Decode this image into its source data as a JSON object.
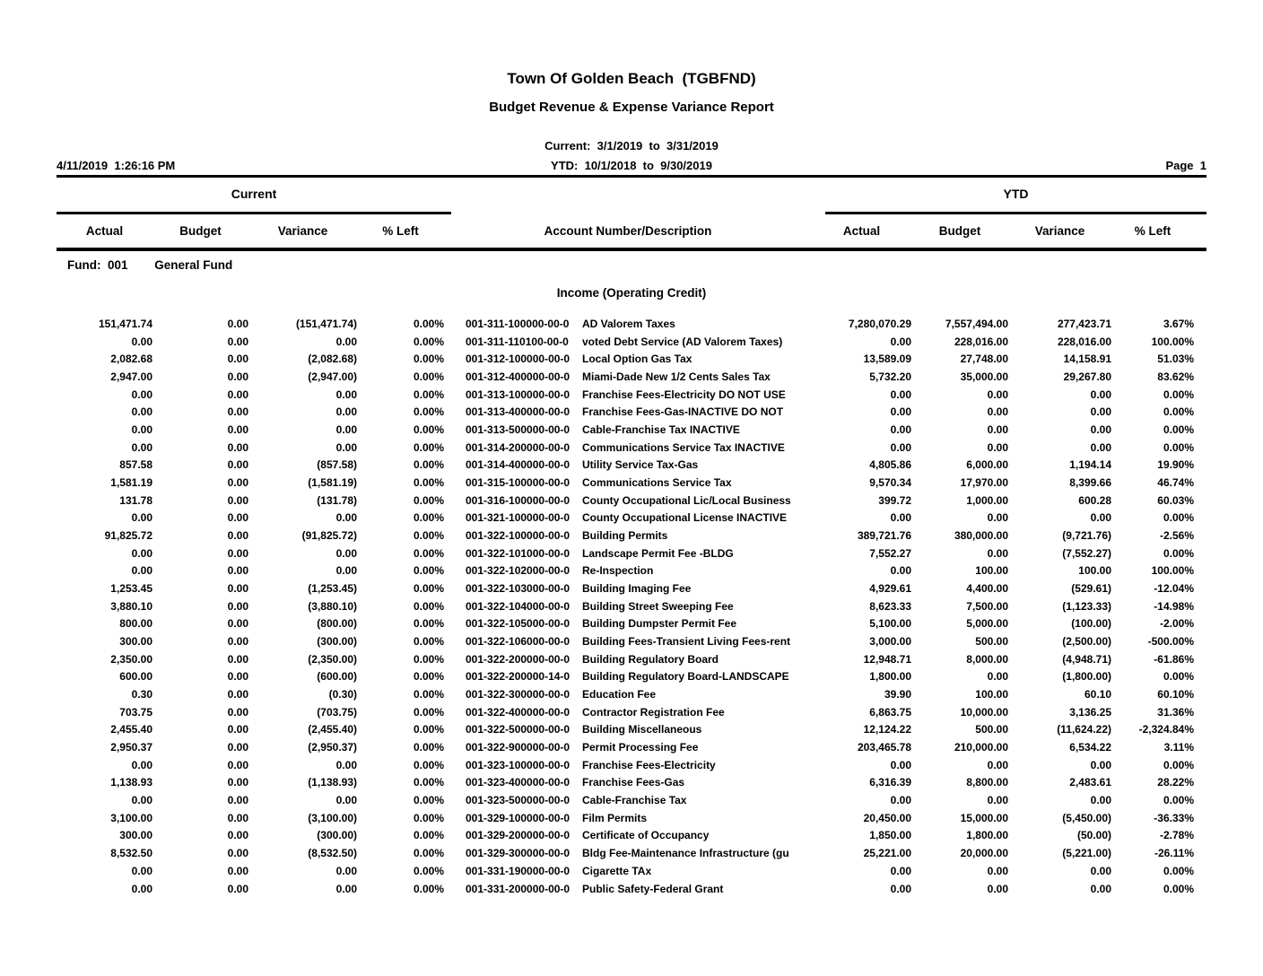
{
  "report": {
    "title": "Town Of Golden Beach  (TGBFND)",
    "subtitle": "Budget Revenue & Expense Variance Report",
    "current_period": "Current:  3/1/2019  to  3/31/2019",
    "ytd_period": "YTD:  10/1/2018  to  9/30/2019",
    "printed_timestamp": "4/11/2019  1:26:16 PM",
    "page_label": "Page  1"
  },
  "table": {
    "group_headers": {
      "current": "Current",
      "ytd": "YTD"
    },
    "columns": [
      "Actual",
      "Budget",
      "Variance",
      "% Left",
      "Account Number/Description",
      "Actual",
      "Budget",
      "Variance",
      "% Left"
    ],
    "fund_label": "Fund:  001",
    "fund_name": "General Fund",
    "section": "Income (Operating Credit)",
    "rows": [
      [
        "151,471.74",
        "0.00",
        "(151,471.74)",
        "0.00%",
        "001-311-100000-00-0",
        "AD Valorem Taxes",
        "7,280,070.29",
        "7,557,494.00",
        "277,423.71",
        "3.67%"
      ],
      [
        "0.00",
        "0.00",
        "0.00",
        "0.00%",
        "001-311-110100-00-0",
        "voted Debt Service (AD Valorem Taxes)",
        "0.00",
        "228,016.00",
        "228,016.00",
        "100.00%"
      ],
      [
        "2,082.68",
        "0.00",
        "(2,082.68)",
        "0.00%",
        "001-312-100000-00-0",
        "Local Option Gas Tax",
        "13,589.09",
        "27,748.00",
        "14,158.91",
        "51.03%"
      ],
      [
        "2,947.00",
        "0.00",
        "(2,947.00)",
        "0.00%",
        "001-312-400000-00-0",
        "Miami-Dade New 1/2 Cents Sales Tax",
        "5,732.20",
        "35,000.00",
        "29,267.80",
        "83.62%"
      ],
      [
        "0.00",
        "0.00",
        "0.00",
        "0.00%",
        "001-313-100000-00-0",
        "Franchise Fees-Electricity DO NOT USE",
        "0.00",
        "0.00",
        "0.00",
        "0.00%"
      ],
      [
        "0.00",
        "0.00",
        "0.00",
        "0.00%",
        "001-313-400000-00-0",
        "Franchise Fees-Gas-INACTIVE DO NOT",
        "0.00",
        "0.00",
        "0.00",
        "0.00%"
      ],
      [
        "0.00",
        "0.00",
        "0.00",
        "0.00%",
        "001-313-500000-00-0",
        "Cable-Franchise Tax INACTIVE",
        "0.00",
        "0.00",
        "0.00",
        "0.00%"
      ],
      [
        "0.00",
        "0.00",
        "0.00",
        "0.00%",
        "001-314-200000-00-0",
        "Communications Service Tax INACTIVE",
        "0.00",
        "0.00",
        "0.00",
        "0.00%"
      ],
      [
        "857.58",
        "0.00",
        "(857.58)",
        "0.00%",
        "001-314-400000-00-0",
        "Utility Service Tax-Gas",
        "4,805.86",
        "6,000.00",
        "1,194.14",
        "19.90%"
      ],
      [
        "1,581.19",
        "0.00",
        "(1,581.19)",
        "0.00%",
        "001-315-100000-00-0",
        "Communications Service Tax",
        "9,570.34",
        "17,970.00",
        "8,399.66",
        "46.74%"
      ],
      [
        "131.78",
        "0.00",
        "(131.78)",
        "0.00%",
        "001-316-100000-00-0",
        "County Occupational Lic/Local Business",
        "399.72",
        "1,000.00",
        "600.28",
        "60.03%"
      ],
      [
        "0.00",
        "0.00",
        "0.00",
        "0.00%",
        "001-321-100000-00-0",
        "County Occupational License INACTIVE",
        "0.00",
        "0.00",
        "0.00",
        "0.00%"
      ],
      [
        "91,825.72",
        "0.00",
        "(91,825.72)",
        "0.00%",
        "001-322-100000-00-0",
        "Building Permits",
        "389,721.76",
        "380,000.00",
        "(9,721.76)",
        "-2.56%"
      ],
      [
        "0.00",
        "0.00",
        "0.00",
        "0.00%",
        "001-322-101000-00-0",
        "Landscape Permit Fee -BLDG",
        "7,552.27",
        "0.00",
        "(7,552.27)",
        "0.00%"
      ],
      [
        "0.00",
        "0.00",
        "0.00",
        "0.00%",
        "001-322-102000-00-0",
        "Re-Inspection",
        "0.00",
        "100.00",
        "100.00",
        "100.00%"
      ],
      [
        "1,253.45",
        "0.00",
        "(1,253.45)",
        "0.00%",
        "001-322-103000-00-0",
        "Building Imaging Fee",
        "4,929.61",
        "4,400.00",
        "(529.61)",
        "-12.04%"
      ],
      [
        "3,880.10",
        "0.00",
        "(3,880.10)",
        "0.00%",
        "001-322-104000-00-0",
        "Building Street Sweeping Fee",
        "8,623.33",
        "7,500.00",
        "(1,123.33)",
        "-14.98%"
      ],
      [
        "800.00",
        "0.00",
        "(800.00)",
        "0.00%",
        "001-322-105000-00-0",
        "Building Dumpster Permit Fee",
        "5,100.00",
        "5,000.00",
        "(100.00)",
        "-2.00%"
      ],
      [
        "300.00",
        "0.00",
        "(300.00)",
        "0.00%",
        "001-322-106000-00-0",
        "Building Fees-Transient Living Fees-rent",
        "3,000.00",
        "500.00",
        "(2,500.00)",
        "-500.00%"
      ],
      [
        "2,350.00",
        "0.00",
        "(2,350.00)",
        "0.00%",
        "001-322-200000-00-0",
        "Building Regulatory Board",
        "12,948.71",
        "8,000.00",
        "(4,948.71)",
        "-61.86%"
      ],
      [
        "600.00",
        "0.00",
        "(600.00)",
        "0.00%",
        "001-322-200000-14-0",
        "Building Regulatory Board-LANDSCAPE",
        "1,800.00",
        "0.00",
        "(1,800.00)",
        "0.00%"
      ],
      [
        "0.30",
        "0.00",
        "(0.30)",
        "0.00%",
        "001-322-300000-00-0",
        "Education Fee",
        "39.90",
        "100.00",
        "60.10",
        "60.10%"
      ],
      [
        "703.75",
        "0.00",
        "(703.75)",
        "0.00%",
        "001-322-400000-00-0",
        "Contractor Registration Fee",
        "6,863.75",
        "10,000.00",
        "3,136.25",
        "31.36%"
      ],
      [
        "2,455.40",
        "0.00",
        "(2,455.40)",
        "0.00%",
        "001-322-500000-00-0",
        "Building Miscellaneous",
        "12,124.22",
        "500.00",
        "(11,624.22)",
        "-2,324.84%"
      ],
      [
        "2,950.37",
        "0.00",
        "(2,950.37)",
        "0.00%",
        "001-322-900000-00-0",
        "Permit Processing Fee",
        "203,465.78",
        "210,000.00",
        "6,534.22",
        "3.11%"
      ],
      [
        "0.00",
        "0.00",
        "0.00",
        "0.00%",
        "001-323-100000-00-0",
        "Franchise Fees-Electricity",
        "0.00",
        "0.00",
        "0.00",
        "0.00%"
      ],
      [
        "1,138.93",
        "0.00",
        "(1,138.93)",
        "0.00%",
        "001-323-400000-00-0",
        "Franchise Fees-Gas",
        "6,316.39",
        "8,800.00",
        "2,483.61",
        "28.22%"
      ],
      [
        "0.00",
        "0.00",
        "0.00",
        "0.00%",
        "001-323-500000-00-0",
        "Cable-Franchise Tax",
        "0.00",
        "0.00",
        "0.00",
        "0.00%"
      ],
      [
        "3,100.00",
        "0.00",
        "(3,100.00)",
        "0.00%",
        "001-329-100000-00-0",
        "Film Permits",
        "20,450.00",
        "15,000.00",
        "(5,450.00)",
        "-36.33%"
      ],
      [
        "300.00",
        "0.00",
        "(300.00)",
        "0.00%",
        "001-329-200000-00-0",
        "Certificate of Occupancy",
        "1,850.00",
        "1,800.00",
        "(50.00)",
        "-2.78%"
      ],
      [
        "8,532.50",
        "0.00",
        "(8,532.50)",
        "0.00%",
        "001-329-300000-00-0",
        "Bldg Fee-Maintenance Infrastructure (gu",
        "25,221.00",
        "20,000.00",
        "(5,221.00)",
        "-26.11%"
      ],
      [
        "0.00",
        "0.00",
        "0.00",
        "0.00%",
        "001-331-190000-00-0",
        "Cigarette TAx",
        "0.00",
        "0.00",
        "0.00",
        "0.00%"
      ],
      [
        "0.00",
        "0.00",
        "0.00",
        "0.00%",
        "001-331-200000-00-0",
        "Public Safety-Federal Grant",
        "0.00",
        "0.00",
        "0.00",
        "0.00%"
      ]
    ]
  }
}
